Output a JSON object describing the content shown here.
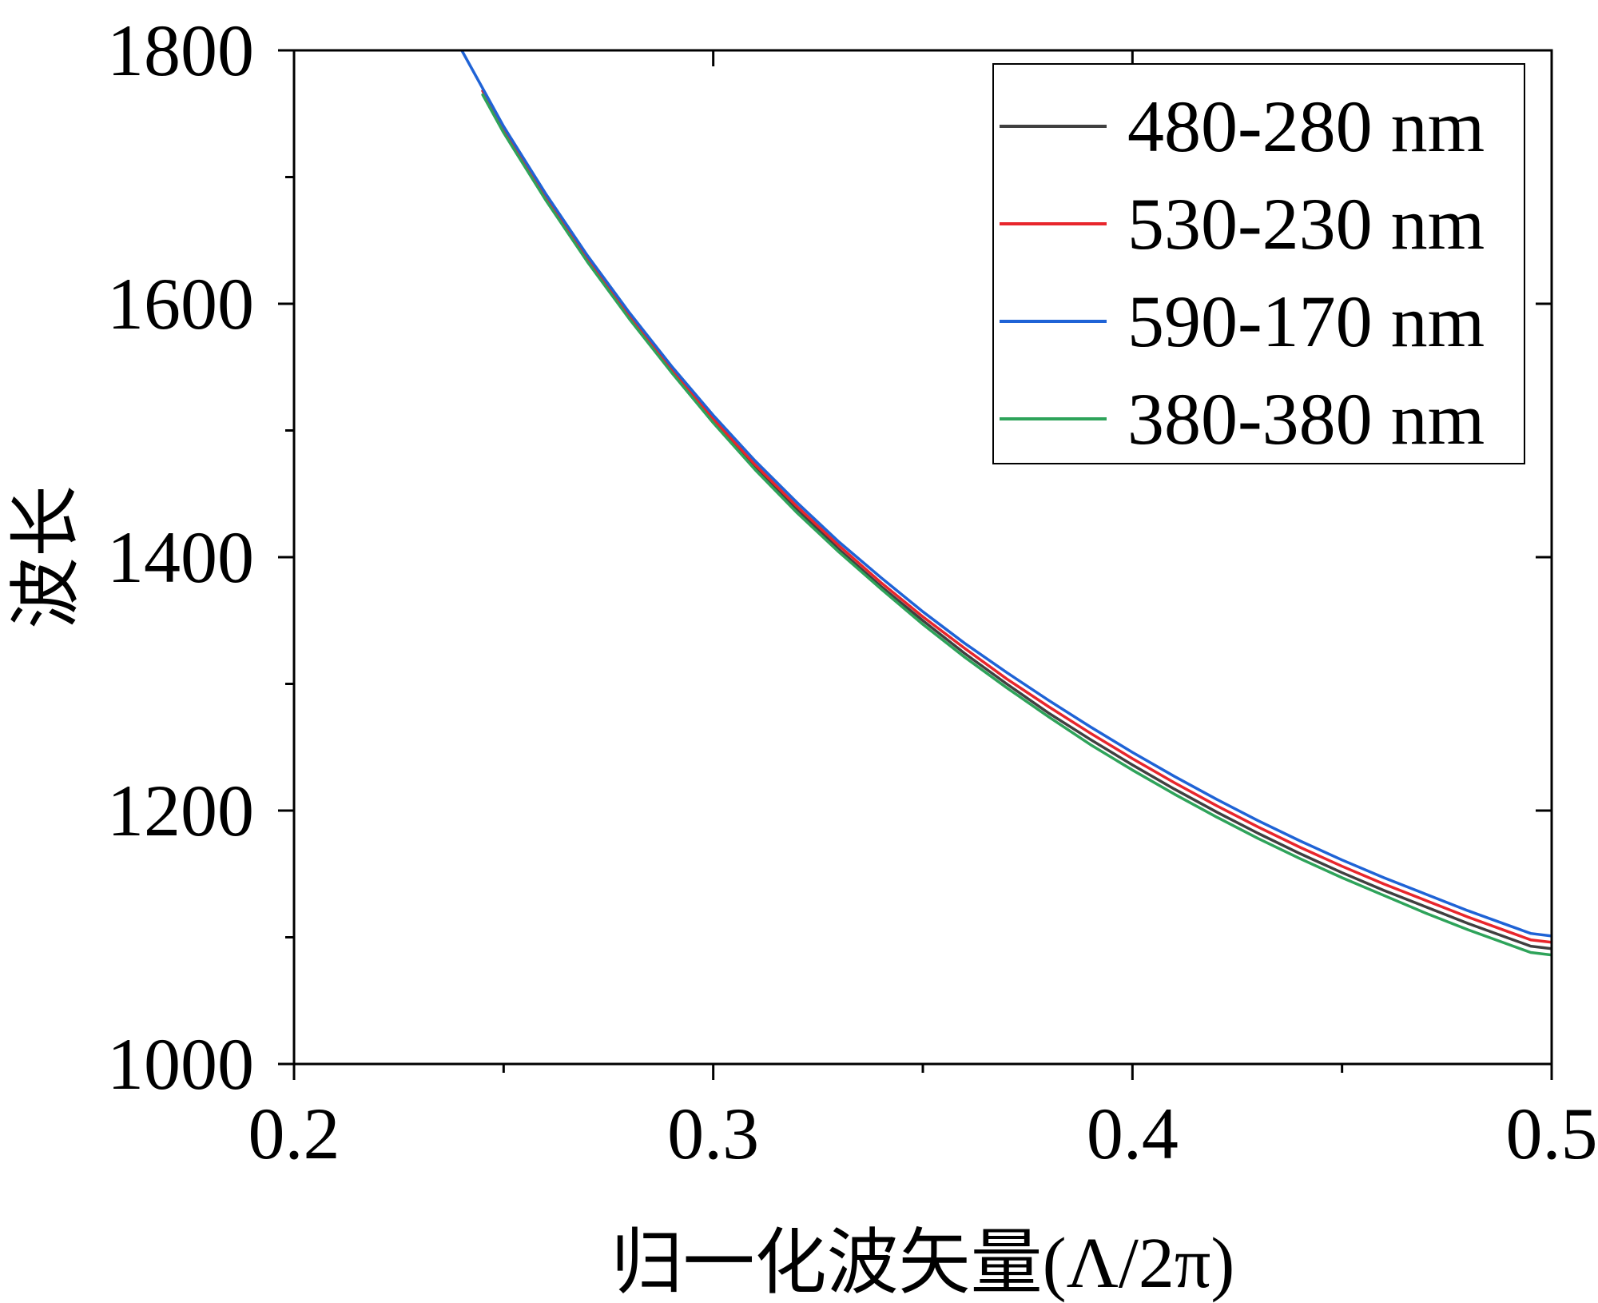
{
  "chart_data": {
    "type": "line",
    "xlabel": "归一化波矢量(Λ/2π)",
    "ylabel": "波长",
    "xlim": [
      0.2,
      0.5
    ],
    "ylim": [
      1000,
      1800
    ],
    "x_ticks": [
      0.2,
      0.3,
      0.4,
      0.5
    ],
    "x_tick_labels": [
      "0.2",
      "0.3",
      "0.4",
      "0.5"
    ],
    "y_ticks": [
      1000,
      1200,
      1400,
      1600,
      1800
    ],
    "y_tick_labels": [
      "1000",
      "1200",
      "1400",
      "1600",
      "1800"
    ],
    "grid": false,
    "legend_position": "top-right",
    "series": [
      {
        "name": "480-280 nm",
        "color": "#404040",
        "x": [
          0.245,
          0.25,
          0.26,
          0.27,
          0.28,
          0.29,
          0.3,
          0.31,
          0.32,
          0.33,
          0.34,
          0.35,
          0.36,
          0.37,
          0.38,
          0.39,
          0.4,
          0.41,
          0.42,
          0.43,
          0.44,
          0.45,
          0.46,
          0.47,
          0.48,
          0.49,
          0.495,
          0.5
        ],
        "y": [
          1768,
          1738,
          1684,
          1635,
          1590,
          1548,
          1508,
          1471,
          1438,
          1406,
          1377,
          1350,
          1324,
          1300,
          1277,
          1256,
          1236,
          1217,
          1199,
          1182,
          1166,
          1151,
          1137,
          1124,
          1111,
          1099,
          1093,
          1091
        ]
      },
      {
        "name": "530-230 nm",
        "color": "#e8262c",
        "x": [
          0.245,
          0.25,
          0.26,
          0.27,
          0.28,
          0.29,
          0.3,
          0.31,
          0.32,
          0.33,
          0.34,
          0.35,
          0.36,
          0.37,
          0.38,
          0.39,
          0.4,
          0.41,
          0.42,
          0.43,
          0.44,
          0.45,
          0.46,
          0.47,
          0.48,
          0.49,
          0.495,
          0.5
        ],
        "y": [
          1768,
          1738,
          1685,
          1636,
          1591,
          1549,
          1509,
          1473,
          1440,
          1409,
          1380,
          1353,
          1328,
          1304,
          1282,
          1261,
          1241,
          1222,
          1204,
          1187,
          1171,
          1156,
          1142,
          1129,
          1116,
          1104,
          1098,
          1096
        ]
      },
      {
        "name": "590-170 nm",
        "color": "#1f63d6",
        "x": [
          0.24,
          0.245,
          0.25,
          0.26,
          0.27,
          0.28,
          0.29,
          0.3,
          0.31,
          0.32,
          0.33,
          0.34,
          0.35,
          0.36,
          0.37,
          0.38,
          0.39,
          0.4,
          0.41,
          0.42,
          0.43,
          0.44,
          0.45,
          0.46,
          0.47,
          0.48,
          0.49,
          0.495,
          0.5
        ],
        "y": [
          1800,
          1770,
          1740,
          1687,
          1638,
          1593,
          1551,
          1512,
          1476,
          1443,
          1412,
          1384,
          1357,
          1332,
          1309,
          1287,
          1266,
          1246,
          1227,
          1209,
          1192,
          1176,
          1161,
          1147,
          1134,
          1121,
          1109,
          1103,
          1101
        ]
      },
      {
        "name": "380-380 nm",
        "color": "#2ea35a",
        "x": [
          0.245,
          0.25,
          0.26,
          0.27,
          0.28,
          0.29,
          0.3,
          0.31,
          0.315,
          0.32,
          0.33,
          0.34,
          0.35,
          0.36,
          0.37,
          0.38,
          0.39,
          0.4,
          0.41,
          0.42,
          0.43,
          0.44,
          0.45,
          0.46,
          0.47,
          0.48,
          0.49,
          0.495,
          0.5
        ],
        "y": [
          1765,
          1735,
          1682,
          1633,
          1588,
          1546,
          1506,
          1469,
          1452,
          1435,
          1404,
          1375,
          1347,
          1321,
          1297,
          1274,
          1252,
          1232,
          1213,
          1195,
          1178,
          1162,
          1147,
          1133,
          1119,
          1106,
          1094,
          1088,
          1086
        ]
      }
    ]
  }
}
